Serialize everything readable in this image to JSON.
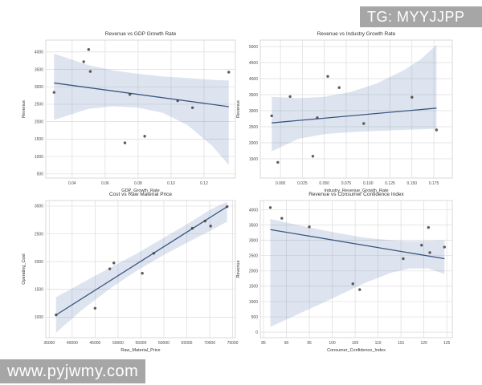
{
  "watermarks": {
    "top_right": "TG: MYYJJPP",
    "bottom_left": "www.pyjwmy.com"
  },
  "colors": {
    "line": "#3a567f",
    "band": "rgba(98,130,183,0.22)",
    "point": "#3f3f3f",
    "grid": "#dcdcdc",
    "frame": "#d0d0d0",
    "title_text": "#333333",
    "tick_text": "#4a4a4a",
    "banner_bg": "#a6a6a6",
    "banner_text": "#ffffff"
  },
  "chart_data": [
    {
      "type": "scatter",
      "title": "Revenue vs GDP Growth Rate",
      "xlabel": "GDP_Growth_Rate",
      "ylabel": "Revenue",
      "xlim": [
        0.024,
        0.139
      ],
      "ylim": [
        380,
        4340
      ],
      "grid": true,
      "xticks": {
        "values": [
          0.04,
          0.06,
          0.08,
          0.1,
          0.12
        ],
        "labels": [
          "0.04",
          "0.06",
          "0.08",
          "0.10",
          "0.12"
        ]
      },
      "yticks": {
        "values": [
          500,
          1000,
          1500,
          2000,
          2500,
          3000,
          3500,
          4000
        ],
        "labels": [
          "500",
          "1000",
          "1500",
          "2000",
          "2500",
          "3000",
          "3500",
          "4000"
        ]
      },
      "points": [
        [
          0.029,
          2840
        ],
        [
          0.047,
          3720
        ],
        [
          0.05,
          4070
        ],
        [
          0.051,
          3440
        ],
        [
          0.072,
          1390
        ],
        [
          0.075,
          2780
        ],
        [
          0.084,
          1580
        ],
        [
          0.104,
          2600
        ],
        [
          0.113,
          2400
        ],
        [
          0.135,
          3420
        ]
      ],
      "regression_line": {
        "x1": 0.029,
        "y1": 3110,
        "x2": 0.135,
        "y2": 2430
      },
      "ci_band": [
        {
          "x": 0.029,
          "top": 3950,
          "bottom": 2050
        },
        {
          "x": 0.05,
          "top": 3620,
          "bottom": 2370
        },
        {
          "x": 0.065,
          "top": 3470,
          "bottom": 2440
        },
        {
          "x": 0.08,
          "top": 3370,
          "bottom": 2400
        },
        {
          "x": 0.095,
          "top": 3300,
          "bottom": 2250
        },
        {
          "x": 0.11,
          "top": 3250,
          "bottom": 1900
        },
        {
          "x": 0.125,
          "top": 3200,
          "bottom": 1300
        },
        {
          "x": 0.135,
          "top": 3180,
          "bottom": 750
        }
      ]
    },
    {
      "type": "scatter",
      "title": "Revenue vs Industry Growth Rate",
      "xlabel": "Industry_Revenue_Growth_Rate",
      "ylabel": "Revenue",
      "xlim": [
        -0.023,
        0.196
      ],
      "ylim": [
        900,
        5200
      ],
      "grid": true,
      "xticks": {
        "values": [
          0.0,
          0.025,
          0.05,
          0.075,
          0.1,
          0.125,
          0.15,
          0.175
        ],
        "labels": [
          "0.000",
          "0.025",
          "0.050",
          "0.075",
          "0.100",
          "0.125",
          "0.150",
          "0.175"
        ]
      },
      "yticks": {
        "values": [
          1500,
          2000,
          2500,
          3000,
          3500,
          4000,
          4500,
          5000
        ],
        "labels": [
          "1500",
          "2000",
          "2500",
          "3000",
          "3500",
          "4000",
          "4500",
          "5000"
        ]
      },
      "points": [
        [
          -0.01,
          2840
        ],
        [
          -0.003,
          1390
        ],
        [
          0.011,
          3440
        ],
        [
          0.037,
          1580
        ],
        [
          0.042,
          2780
        ],
        [
          0.054,
          4070
        ],
        [
          0.067,
          3720
        ],
        [
          0.095,
          2600
        ],
        [
          0.15,
          3420
        ],
        [
          0.178,
          2400
        ]
      ],
      "regression_line": {
        "x1": -0.01,
        "y1": 2620,
        "x2": 0.178,
        "y2": 3080
      },
      "ci_band": [
        {
          "x": -0.01,
          "top": 3430,
          "bottom": 1730
        },
        {
          "x": 0.02,
          "top": 3390,
          "bottom": 2120
        },
        {
          "x": 0.05,
          "top": 3430,
          "bottom": 2270
        },
        {
          "x": 0.08,
          "top": 3580,
          "bottom": 2330
        },
        {
          "x": 0.11,
          "top": 3850,
          "bottom": 2370
        },
        {
          "x": 0.14,
          "top": 4250,
          "bottom": 2400
        },
        {
          "x": 0.16,
          "top": 4600,
          "bottom": 2420
        },
        {
          "x": 0.178,
          "top": 5050,
          "bottom": 2440
        }
      ]
    },
    {
      "type": "scatter",
      "title": "Cost vs Raw Material Price",
      "xlabel": "Raw_Material_Price",
      "ylabel": "Operating_Cost",
      "xlim": [
        34250,
        75600
      ],
      "ylim": [
        630,
        3100
      ],
      "grid": true,
      "xticks": {
        "values": [
          35000,
          40000,
          45000,
          50000,
          55000,
          60000,
          65000,
          70000,
          75000
        ],
        "labels": [
          "35000",
          "40000",
          "45000",
          "50000",
          "55000",
          "60000",
          "65000",
          "70000",
          "75000"
        ]
      },
      "yticks": {
        "values": [
          1000,
          1500,
          2000,
          2500,
          3000
        ],
        "labels": [
          "1000",
          "1500",
          "2000",
          "2500",
          "3000"
        ]
      },
      "points": [
        [
          36500,
          1040
        ],
        [
          45000,
          1160
        ],
        [
          48200,
          1870
        ],
        [
          49100,
          1975
        ],
        [
          55300,
          1790
        ],
        [
          57800,
          2150
        ],
        [
          66200,
          2600
        ],
        [
          69000,
          2730
        ],
        [
          70200,
          2640
        ],
        [
          73800,
          2990
        ]
      ],
      "regression_line": {
        "x1": 36500,
        "y1": 1040,
        "x2": 73800,
        "y2": 2990
      },
      "ci_band": [
        {
          "x": 36500,
          "top": 1360,
          "bottom": 720
        },
        {
          "x": 42000,
          "top": 1610,
          "bottom": 1120
        },
        {
          "x": 48000,
          "top": 1880,
          "bottom": 1500
        },
        {
          "x": 54000,
          "top": 2140,
          "bottom": 1830
        },
        {
          "x": 60000,
          "top": 2430,
          "bottom": 2120
        },
        {
          "x": 66000,
          "top": 2720,
          "bottom": 2380
        },
        {
          "x": 70000,
          "top": 2930,
          "bottom": 2550
        },
        {
          "x": 73800,
          "top": 3080,
          "bottom": 2720
        }
      ]
    },
    {
      "type": "scatter",
      "title": "Revenue vs Consumer Confidence Index",
      "xlabel": "Consumer_Confidence_Index",
      "ylabel": "Revenue",
      "xlim": [
        84.3,
        126.2
      ],
      "ylim": [
        -180,
        4300
      ],
      "grid": true,
      "xticks": {
        "values": [
          85,
          90,
          95,
          100,
          105,
          110,
          115,
          120,
          125
        ],
        "labels": [
          "85",
          "90",
          "95",
          "100",
          "105",
          "110",
          "115",
          "120",
          "125"
        ]
      },
      "yticks": {
        "values": [
          0,
          500,
          1000,
          1500,
          2000,
          2500,
          3000,
          3500,
          4000
        ],
        "labels": [
          "0",
          "500",
          "1000",
          "1500",
          "2000",
          "2500",
          "3000",
          "3500",
          "4000"
        ]
      },
      "points": [
        [
          86.5,
          4070
        ],
        [
          89,
          3720
        ],
        [
          95,
          3440
        ],
        [
          104.5,
          1580
        ],
        [
          106,
          1390
        ],
        [
          115.5,
          2400
        ],
        [
          119.5,
          2840
        ],
        [
          121,
          3420
        ],
        [
          121.3,
          2600
        ],
        [
          124.5,
          2780
        ]
      ],
      "regression_line": {
        "x1": 86.5,
        "y1": 3350,
        "x2": 124.5,
        "y2": 2400
      },
      "ci_band": [
        {
          "x": 86.5,
          "top": 3700,
          "bottom": 170
        },
        {
          "x": 93,
          "top": 3480,
          "bottom": 620
        },
        {
          "x": 100,
          "top": 3270,
          "bottom": 1100
        },
        {
          "x": 107,
          "top": 3090,
          "bottom": 1600
        },
        {
          "x": 113,
          "top": 3000,
          "bottom": 1950
        },
        {
          "x": 117,
          "top": 2970,
          "bottom": 2080
        },
        {
          "x": 121,
          "top": 2980,
          "bottom": 2080
        },
        {
          "x": 124.5,
          "top": 3000,
          "bottom": 1900
        }
      ]
    }
  ]
}
